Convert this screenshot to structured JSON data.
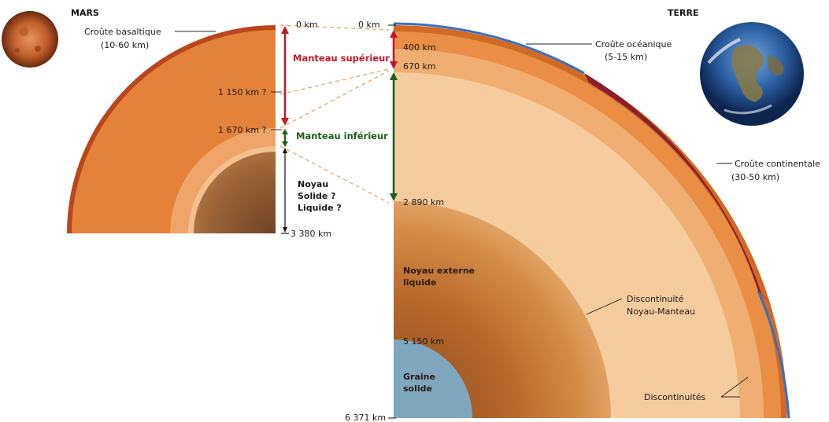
{
  "mars": {
    "title": "MARS",
    "crust_label": "Croûte basaltique",
    "crust_range": "(10-60 km)",
    "depth_0": "0 km",
    "depth_1150": "1 150 km ?",
    "depth_1670": "1 670 km ?",
    "depth_3380": "3 380 km",
    "core_line1": "Noyau",
    "core_line2": "Solide ?",
    "core_line3": "Liquide ?"
  },
  "earth": {
    "title": "TERRE",
    "depth_0": "0 km",
    "depth_400": "400 km",
    "depth_670": "670 km",
    "depth_2890": "2 890 km",
    "depth_5150": "5 150 km",
    "depth_6371": "6 371 km",
    "oceanic_crust_label": "Croûte océanique",
    "oceanic_crust_range": "(5-15 km)",
    "continental_crust_label": "Croûte continentale",
    "continental_crust_range": "(30-50 km)",
    "outer_core_line1": "Noyau externe",
    "outer_core_line2": "liquide",
    "inner_core_line1": "Graine",
    "inner_core_line2": "solide",
    "cmb_line1": "Discontinuité",
    "cmb_line2": "Noyau-Manteau",
    "discontinuities": "Discontinuités"
  },
  "shared": {
    "upper_mantle": "Manteau supérieur",
    "lower_mantle": "Manteau inférieur"
  },
  "colors": {
    "crust_orange": "#d9742a",
    "upper_mantle": "#e9924a",
    "transition": "#f0b278",
    "lower_mantle": "#f6cfa3",
    "outer_core": "#c9803e",
    "inner_core": "#7fa8bf",
    "oceanic_crust": "#3a6fc4",
    "continental_crust": "#8a1f2c",
    "upper_arrow": "#c0172b",
    "lower_arrow": "#1f5e1f"
  }
}
